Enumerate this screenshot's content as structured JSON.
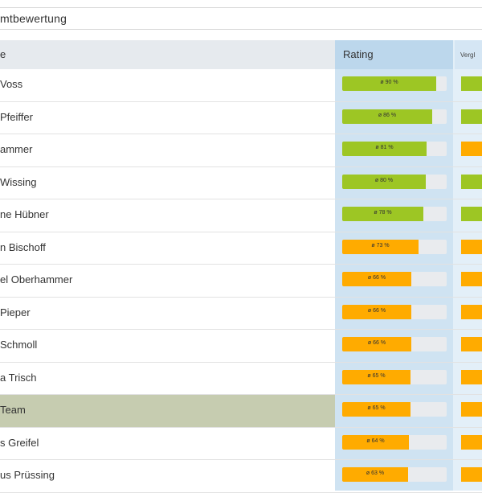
{
  "top_bar": {
    "label": "mtbewertung"
  },
  "header": {
    "name": "e",
    "rating": "Rating",
    "compare": "Vergl"
  },
  "colors": {
    "green": "#9dc624",
    "orange": "#ffab00"
  },
  "rows": [
    {
      "name": "Voss",
      "label": "ø 90 %",
      "value": 0.9,
      "color": "green",
      "compare_color": "green",
      "team": false
    },
    {
      "name": "Pfeiffer",
      "label": "ø 86 %",
      "value": 0.86,
      "color": "green",
      "compare_color": "green",
      "team": false
    },
    {
      "name": "ammer",
      "label": "ø 81 %",
      "value": 0.81,
      "color": "green",
      "compare_color": "orange",
      "team": false
    },
    {
      "name": "Wissing",
      "label": "ø 80 %",
      "value": 0.8,
      "color": "green",
      "compare_color": "green",
      "team": false
    },
    {
      "name": "ne Hübner",
      "label": "ø 78 %",
      "value": 0.78,
      "color": "green",
      "compare_color": "green",
      "team": false
    },
    {
      "name": "n Bischoff",
      "label": "ø 73 %",
      "value": 0.73,
      "color": "orange",
      "compare_color": "orange",
      "team": false
    },
    {
      "name": "el Oberhammer",
      "label": "ø 66 %",
      "value": 0.66,
      "color": "orange",
      "compare_color": "orange",
      "team": false
    },
    {
      "name": "Pieper",
      "label": "ø 66 %",
      "value": 0.66,
      "color": "orange",
      "compare_color": "orange",
      "team": false
    },
    {
      "name": "Schmoll",
      "label": "ø 66 %",
      "value": 0.66,
      "color": "orange",
      "compare_color": "orange",
      "team": false
    },
    {
      "name": "a Trisch",
      "label": "ø 65 %",
      "value": 0.65,
      "color": "orange",
      "compare_color": "orange",
      "team": false
    },
    {
      "name": "Team",
      "label": "ø 65 %",
      "value": 0.65,
      "color": "orange",
      "compare_color": "orange",
      "team": true
    },
    {
      "name": "s Greifel",
      "label": "ø 64 %",
      "value": 0.64,
      "color": "orange",
      "compare_color": "orange",
      "team": false
    },
    {
      "name": "us Prüssing",
      "label": "ø 63 %",
      "value": 0.63,
      "color": "orange",
      "compare_color": "orange",
      "team": false
    }
  ]
}
